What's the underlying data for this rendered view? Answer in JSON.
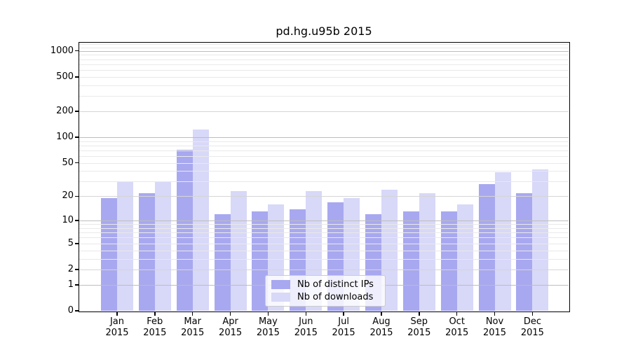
{
  "chart_data": {
    "type": "bar",
    "title": "pd.hg.u95b 2015",
    "categories": [
      "Jan",
      "Feb",
      "Mar",
      "Apr",
      "May",
      "Jun",
      "Jul",
      "Aug",
      "Sep",
      "Oct",
      "Nov",
      "Dec"
    ],
    "year": "2015",
    "series": [
      {
        "name": "Nb of distinct IPs",
        "color": "#a8a8f0",
        "values": [
          19,
          22,
          71,
          12,
          13,
          14,
          17,
          12,
          13,
          13,
          28,
          22
        ]
      },
      {
        "name": "Nb of downloads",
        "color": "#d8d8f8",
        "values": [
          30,
          30,
          122,
          23,
          16,
          23,
          19,
          24,
          22,
          16,
          39,
          42
        ]
      }
    ],
    "yscale": "log1p",
    "yticks": [
      0,
      1,
      2,
      5,
      10,
      20,
      50,
      100,
      200,
      500,
      1000
    ],
    "major_gridlines": [
      1,
      10,
      100,
      1000
    ],
    "minor_gridlines": [
      2,
      3,
      4,
      6,
      7,
      8,
      9,
      20,
      30,
      40,
      60,
      70,
      80,
      90,
      200,
      300,
      400,
      600,
      700,
      800,
      900,
      1100,
      1200
    ],
    "labeled_minor_gridlines": [
      2,
      5,
      20,
      50,
      200,
      500
    ],
    "ylim": [
      0,
      1245
    ],
    "grid": true,
    "legend_position": "lower center",
    "colors": {
      "major_grid": "#bdbdbd",
      "minor_grid": "#e9e9e9",
      "axis": "#000000",
      "background": "#ffffff"
    }
  }
}
